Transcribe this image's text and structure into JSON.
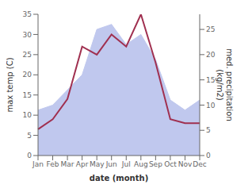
{
  "chart_data": {
    "type": "line",
    "xlabel": "date (month)",
    "ylabel": "max temp (C)",
    "y2label": "med. precipitation\n(kg/m2)",
    "categories": [
      "Jan",
      "Feb",
      "Mar",
      "Apr",
      "May",
      "Jun",
      "Jul",
      "Aug",
      "Sep",
      "Oct",
      "Nov",
      "Dec"
    ],
    "series": [
      {
        "type": "area",
        "axis": "y2",
        "color": "#c0c8ee",
        "values": [
          9.0,
          10.0,
          13.0,
          16.0,
          25.0,
          26.0,
          22.0,
          24.0,
          19.0,
          11.0,
          9.0,
          11.0
        ]
      },
      {
        "type": "line",
        "color": "#a03050",
        "values": [
          6.5,
          9.0,
          14.0,
          27.0,
          25.0,
          30.0,
          27.0,
          35.0,
          23.0,
          9.0,
          8.0,
          8.0
        ]
      }
    ],
    "ylim": [
      0,
      35
    ],
    "yticks": [
      0,
      5,
      10,
      15,
      20,
      25,
      30,
      35
    ],
    "y2lim": [
      0,
      28
    ],
    "y2ticks": [
      0,
      5,
      10,
      15,
      20,
      25
    ],
    "grid": false
  }
}
